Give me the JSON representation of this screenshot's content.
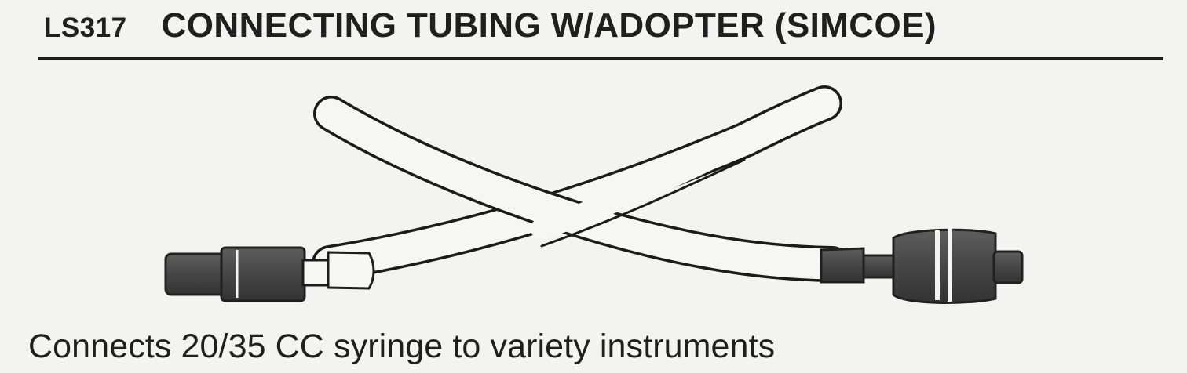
{
  "catalog_label": {
    "code": "LS317",
    "title": "CONNECTING TUBING W/ADOPTER (SIMCOE)"
  },
  "description": "Connects 20/35 CC syringe to variety instruments"
}
